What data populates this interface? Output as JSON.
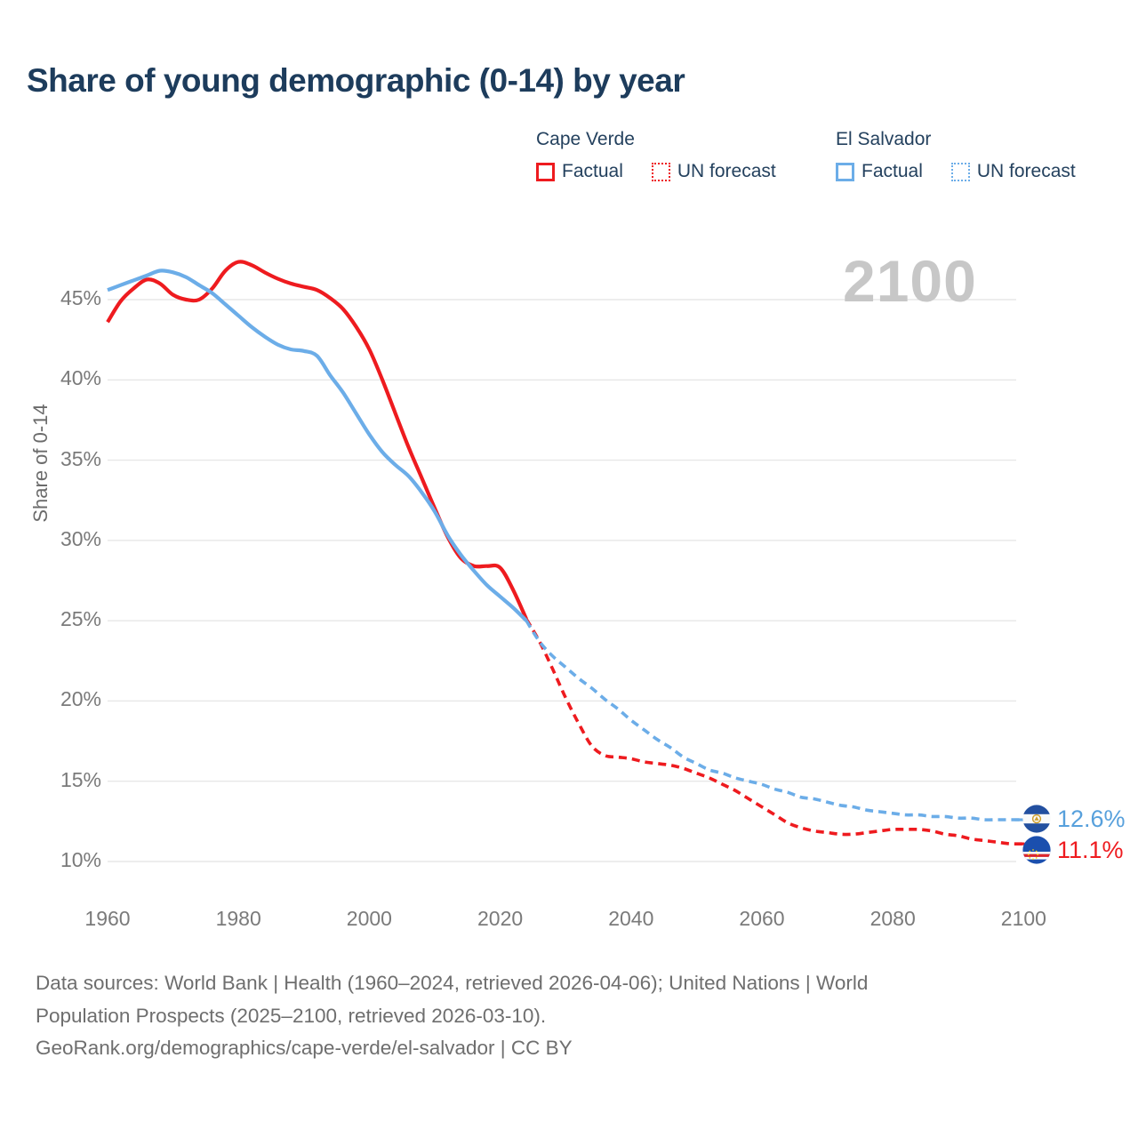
{
  "title": "Share of young demographic (0-14) by year",
  "watermark": "2100",
  "legend": {
    "groups": [
      {
        "name": "Cape Verde",
        "color": "#ee1b1f",
        "items": [
          {
            "label": "Factual",
            "style": "solid"
          },
          {
            "label": "UN forecast",
            "style": "dotted"
          }
        ]
      },
      {
        "name": "El Salvador",
        "color": "#6cade8",
        "items": [
          {
            "label": "Factual",
            "style": "solid"
          },
          {
            "label": "UN forecast",
            "style": "dotted"
          }
        ]
      }
    ]
  },
  "chart_data": {
    "type": "line",
    "title": "Share of young demographic (0-14) by year",
    "xlabel": "",
    "ylabel": "Share of 0-14",
    "xlim": [
      1960,
      2100
    ],
    "ylim": [
      8.5,
      48
    ],
    "grid": "horizontal",
    "legend_position": "top-right",
    "x_ticks": [
      1960,
      1980,
      2000,
      2020,
      2040,
      2060,
      2080,
      2100
    ],
    "y_ticks": [
      {
        "v": 45,
        "label": "45%"
      },
      {
        "v": 40,
        "label": "40%"
      },
      {
        "v": 35,
        "label": "35%"
      },
      {
        "v": 30,
        "label": "30%"
      },
      {
        "v": 25,
        "label": "25%"
      },
      {
        "v": 20,
        "label": "20%"
      },
      {
        "v": 15,
        "label": "15%"
      },
      {
        "v": 10,
        "label": "10%"
      }
    ],
    "series": [
      {
        "name": "Cape Verde Factual",
        "color": "#ee1b1f",
        "dash": false,
        "points": [
          [
            1960,
            43.6
          ],
          [
            1962,
            44.9
          ],
          [
            1964,
            45.7
          ],
          [
            1966,
            46.25
          ],
          [
            1968,
            46.0
          ],
          [
            1970,
            45.3
          ],
          [
            1972,
            45.0
          ],
          [
            1974,
            45.0
          ],
          [
            1976,
            45.7
          ],
          [
            1978,
            46.8
          ],
          [
            1980,
            47.35
          ],
          [
            1982,
            47.15
          ],
          [
            1984,
            46.7
          ],
          [
            1986,
            46.3
          ],
          [
            1988,
            46.0
          ],
          [
            1990,
            45.8
          ],
          [
            1992,
            45.6
          ],
          [
            1994,
            45.1
          ],
          [
            1996,
            44.4
          ],
          [
            1998,
            43.3
          ],
          [
            2000,
            41.9
          ],
          [
            2002,
            40.0
          ],
          [
            2004,
            37.9
          ],
          [
            2006,
            35.8
          ],
          [
            2008,
            33.9
          ],
          [
            2010,
            32.0
          ],
          [
            2012,
            30.2
          ],
          [
            2014,
            28.9
          ],
          [
            2016,
            28.4
          ],
          [
            2018,
            28.4
          ],
          [
            2020,
            28.3
          ],
          [
            2022,
            26.9
          ],
          [
            2024,
            25.1
          ]
        ]
      },
      {
        "name": "Cape Verde UN forecast",
        "color": "#ee1b1f",
        "dash": true,
        "points": [
          [
            2024,
            25.1
          ],
          [
            2026,
            23.7
          ],
          [
            2028,
            22.0
          ],
          [
            2030,
            20.2
          ],
          [
            2032,
            18.6
          ],
          [
            2034,
            17.2
          ],
          [
            2036,
            16.6
          ],
          [
            2038,
            16.5
          ],
          [
            2040,
            16.4
          ],
          [
            2042,
            16.2
          ],
          [
            2044,
            16.1
          ],
          [
            2046,
            16.0
          ],
          [
            2048,
            15.8
          ],
          [
            2050,
            15.5
          ],
          [
            2052,
            15.2
          ],
          [
            2054,
            14.8
          ],
          [
            2056,
            14.4
          ],
          [
            2058,
            13.9
          ],
          [
            2060,
            13.4
          ],
          [
            2062,
            12.9
          ],
          [
            2064,
            12.4
          ],
          [
            2066,
            12.1
          ],
          [
            2068,
            11.9
          ],
          [
            2070,
            11.8
          ],
          [
            2072,
            11.7
          ],
          [
            2074,
            11.7
          ],
          [
            2076,
            11.8
          ],
          [
            2078,
            11.9
          ],
          [
            2080,
            12.0
          ],
          [
            2082,
            12.0
          ],
          [
            2084,
            12.0
          ],
          [
            2086,
            11.9
          ],
          [
            2088,
            11.7
          ],
          [
            2090,
            11.6
          ],
          [
            2092,
            11.4
          ],
          [
            2094,
            11.3
          ],
          [
            2096,
            11.2
          ],
          [
            2098,
            11.1
          ],
          [
            2100,
            11.1
          ]
        ]
      },
      {
        "name": "El Salvador Factual",
        "color": "#6cade8",
        "dash": false,
        "points": [
          [
            1960,
            45.6
          ],
          [
            1962,
            45.9
          ],
          [
            1964,
            46.2
          ],
          [
            1966,
            46.5
          ],
          [
            1968,
            46.8
          ],
          [
            1970,
            46.7
          ],
          [
            1972,
            46.4
          ],
          [
            1974,
            45.9
          ],
          [
            1976,
            45.4
          ],
          [
            1978,
            44.7
          ],
          [
            1980,
            44.0
          ],
          [
            1982,
            43.3
          ],
          [
            1984,
            42.7
          ],
          [
            1986,
            42.2
          ],
          [
            1988,
            41.9
          ],
          [
            1990,
            41.8
          ],
          [
            1992,
            41.5
          ],
          [
            1994,
            40.3
          ],
          [
            1996,
            39.2
          ],
          [
            1998,
            37.9
          ],
          [
            2000,
            36.6
          ],
          [
            2002,
            35.5
          ],
          [
            2004,
            34.7
          ],
          [
            2006,
            34.0
          ],
          [
            2008,
            33.0
          ],
          [
            2010,
            31.8
          ],
          [
            2012,
            30.3
          ],
          [
            2014,
            29.1
          ],
          [
            2016,
            28.1
          ],
          [
            2018,
            27.2
          ],
          [
            2020,
            26.5
          ],
          [
            2022,
            25.8
          ],
          [
            2024,
            25.0
          ]
        ]
      },
      {
        "name": "El Salvador UN forecast",
        "color": "#6cade8",
        "dash": true,
        "points": [
          [
            2024,
            25.0
          ],
          [
            2026,
            23.7
          ],
          [
            2028,
            22.8
          ],
          [
            2030,
            22.1
          ],
          [
            2032,
            21.4
          ],
          [
            2034,
            20.8
          ],
          [
            2036,
            20.1
          ],
          [
            2038,
            19.5
          ],
          [
            2040,
            18.8
          ],
          [
            2042,
            18.2
          ],
          [
            2044,
            17.6
          ],
          [
            2046,
            17.1
          ],
          [
            2048,
            16.5
          ],
          [
            2050,
            16.1
          ],
          [
            2052,
            15.7
          ],
          [
            2054,
            15.5
          ],
          [
            2056,
            15.2
          ],
          [
            2058,
            15.0
          ],
          [
            2060,
            14.8
          ],
          [
            2062,
            14.5
          ],
          [
            2064,
            14.3
          ],
          [
            2066,
            14.0
          ],
          [
            2068,
            13.9
          ],
          [
            2070,
            13.7
          ],
          [
            2072,
            13.5
          ],
          [
            2074,
            13.4
          ],
          [
            2076,
            13.2
          ],
          [
            2078,
            13.1
          ],
          [
            2080,
            13.0
          ],
          [
            2082,
            12.9
          ],
          [
            2084,
            12.9
          ],
          [
            2086,
            12.8
          ],
          [
            2088,
            12.8
          ],
          [
            2090,
            12.7
          ],
          [
            2092,
            12.7
          ],
          [
            2094,
            12.6
          ],
          [
            2096,
            12.6
          ],
          [
            2098,
            12.6
          ],
          [
            2100,
            12.6
          ]
        ]
      }
    ],
    "end_labels": [
      {
        "country": "El Salvador",
        "value_label": "12.6%",
        "value": 12.6,
        "color": "#57a0dc",
        "series_index": 3,
        "flag": "el-salvador"
      },
      {
        "country": "Cape Verde",
        "value_label": "11.1%",
        "value": 11.1,
        "color": "#ee1b1f",
        "series_index": 1,
        "flag": "cape-verde"
      }
    ]
  },
  "footer": {
    "lines": [
      "Data sources: World Bank | Health (1960–2024, retrieved 2026-04-06); United Nations | World",
      "Population Prospects (2025–2100, retrieved 2026-03-10).",
      "GeoRank.org/demographics/cape-verde/el-salvador | CC BY"
    ]
  }
}
